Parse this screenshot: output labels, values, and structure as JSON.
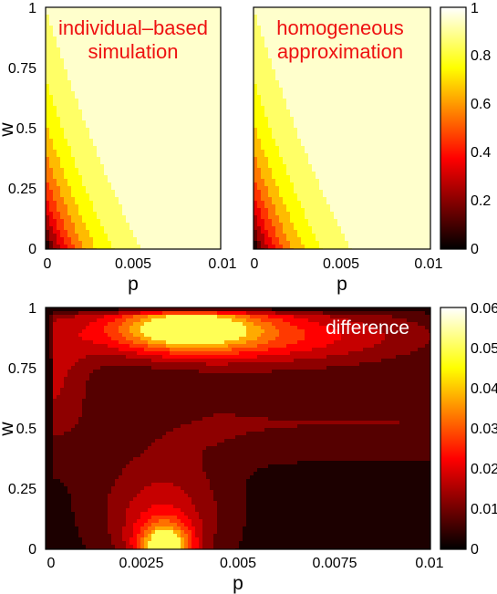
{
  "chart_data": [
    {
      "type": "heatmap",
      "title": "individual–based simulation",
      "title_lines": [
        "individual–based",
        "simulation"
      ],
      "xlabel": "p",
      "ylabel": "w",
      "xlim": [
        0,
        0.01
      ],
      "ylim": [
        0,
        1
      ],
      "x_ticks": [
        "0",
        "0.005",
        "0.01"
      ],
      "y_ticks": [
        "0",
        "0.25",
        "0.5",
        "0.75",
        "1"
      ],
      "colormap": "hot",
      "clim": [
        0,
        1
      ],
      "contour_levels": [
        0.1,
        0.2,
        0.3,
        0.4,
        0.5,
        0.6,
        0.7,
        0.8,
        0.9
      ]
    },
    {
      "type": "heatmap",
      "title": "homogeneous approximation",
      "title_lines": [
        "homogeneous",
        "approximation"
      ],
      "xlabel": "p",
      "xlim": [
        0,
        0.01
      ],
      "ylim": [
        0,
        1
      ],
      "x_ticks": [
        "0",
        "0.005",
        "0.01"
      ],
      "colormap": "hot",
      "clim": [
        0,
        1
      ],
      "colorbar_ticks": [
        "0",
        "0.2",
        "0.4",
        "0.6",
        "0.8",
        "1"
      ],
      "contour_levels": [
        0.1,
        0.2,
        0.3,
        0.4,
        0.5,
        0.6,
        0.7,
        0.8,
        0.9
      ]
    },
    {
      "type": "heatmap",
      "title": "difference",
      "xlabel": "p",
      "ylabel": "w",
      "xlim": [
        0,
        0.01
      ],
      "ylim": [
        0,
        1
      ],
      "x_ticks": [
        "0",
        "0.0025",
        "0.005",
        "0.0075",
        "0.01"
      ],
      "y_ticks": [
        "0",
        "0.25",
        "0.5",
        "0.75",
        "1"
      ],
      "colormap": "hot",
      "clim": [
        0,
        0.06
      ],
      "colorbar_ticks": [
        "0",
        "0.01",
        "0.02",
        "0.03",
        "0.04",
        "0.05",
        "0.06"
      ],
      "contour_levels": [
        0.005,
        0.01,
        0.015,
        0.02,
        0.025,
        0.03,
        0.035,
        0.04
      ]
    }
  ]
}
